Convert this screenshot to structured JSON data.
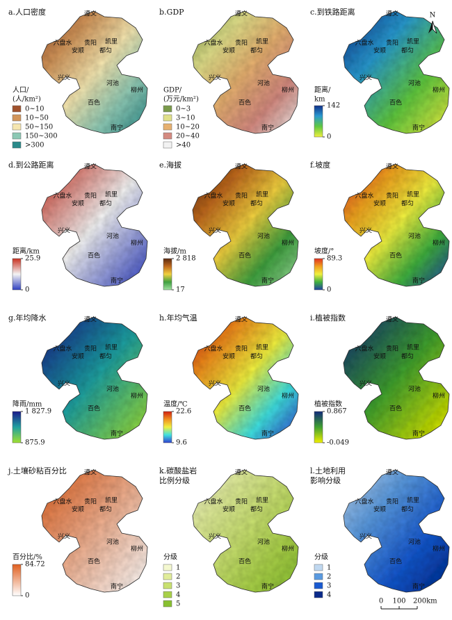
{
  "panels": [
    {
      "title": [
        "a.人口密度"
      ],
      "legend_title": [
        "人口/",
        "(人/km²)"
      ],
      "legend": {
        "kind": "classes",
        "labels": [
          "0~10",
          "10~50",
          "50~150",
          "150~300",
          ">300"
        ],
        "colors": [
          "#a0522d",
          "#d2955a",
          "#f5e6b0",
          "#8cc8b4",
          "#2a8a8a"
        ]
      }
    },
    {
      "title": [
        "b.GDP"
      ],
      "legend_title": [
        "GDP/",
        "(万元/km²)"
      ],
      "legend": {
        "kind": "classes",
        "labels": [
          "0~3",
          "3~10",
          "10~20",
          "20~40",
          ">40"
        ],
        "colors": [
          "#7a9a4a",
          "#e0e08a",
          "#e6b070",
          "#d48a80",
          "#f2f2f2"
        ]
      }
    },
    {
      "title": [
        "c.到铁路距离"
      ],
      "legend_title": [
        "距离/",
        "km"
      ],
      "legend": {
        "kind": "colorbar",
        "ticks": [
          0,
          142
        ],
        "colors": [
          "#10308a",
          "#2a9ad0",
          "#60c840",
          "#f0f040"
        ]
      }
    },
    {
      "title": [
        "d.到公路距离"
      ],
      "legend_title": [
        "距离/km"
      ],
      "legend": {
        "kind": "colorbar",
        "ticks": [
          0,
          25.9
        ],
        "colors": [
          "#c83020",
          "#f4f4f4",
          "#3040c0"
        ]
      }
    },
    {
      "title": [
        "e.海拔"
      ],
      "legend_title": [
        "海拔/m"
      ],
      "legend": {
        "kind": "colorbar",
        "ticks": [
          17,
          {
            "value": 2818,
            "label": "2 818"
          }
        ],
        "colors": [
          "#5a2a10",
          "#c06a20",
          "#f0d040",
          "#40a040",
          "#a0e0a0"
        ]
      }
    },
    {
      "title": [
        "f.坡度"
      ],
      "legend_title": [
        "坡度/°"
      ],
      "legend": {
        "kind": "colorbar",
        "ticks": [
          0,
          89.3
        ],
        "colors": [
          "#e03020",
          "#f0a020",
          "#f0f040",
          "#40b040",
          "#2040a0"
        ]
      }
    },
    {
      "title": [
        "g.年均降水"
      ],
      "legend_title": [
        "降雨/mm"
      ],
      "legend": {
        "kind": "colorbar",
        "ticks": [
          875.9,
          {
            "value": 1827.9,
            "label": "1 827.9"
          }
        ],
        "colors": [
          "#1a1a8a",
          "#20a0a0",
          "#a0e030"
        ]
      }
    },
    {
      "title": [
        "h.年均气温"
      ],
      "legend_title": [
        "温度/℃"
      ],
      "legend": {
        "kind": "colorbar",
        "ticks": [
          9.6,
          22.6
        ],
        "colors": [
          "#d02010",
          "#f09020",
          "#f0f040",
          "#40e0e0",
          "#3040d0"
        ]
      }
    },
    {
      "title": [
        "i.植被指数"
      ],
      "legend_title": [
        "植被指数"
      ],
      "legend": {
        "kind": "colorbar",
        "ticks": [
          -0.049,
          0.867
        ],
        "colors": [
          "#102a7a",
          "#40a030",
          "#f0f000"
        ]
      }
    },
    {
      "title": [
        "j.土壤砂粘百分比"
      ],
      "legend_title": [
        "百分比/%"
      ],
      "legend": {
        "kind": "colorbar",
        "ticks": [
          0,
          84.72
        ],
        "colors": [
          "#e06020",
          "#ffffff"
        ]
      }
    },
    {
      "title": [
        "k.碳酸盐岩",
        "比例分级"
      ],
      "legend_title": [
        "分级"
      ],
      "legend": {
        "kind": "classes",
        "labels": [
          "1",
          "2",
          "3",
          "4",
          "5"
        ],
        "colors": [
          "#f4f8d0",
          "#e0ec9a",
          "#c8e070",
          "#a8d048",
          "#88c030"
        ]
      }
    },
    {
      "title": [
        "l.土地利用",
        "影响分级"
      ],
      "legend_title": [
        "分级"
      ],
      "legend": {
        "kind": "classes",
        "labels": [
          "1",
          "2",
          "3",
          "4"
        ],
        "colors": [
          "#c0d8f0",
          "#5a9ae0",
          "#1a5ad0",
          "#0a2a8a"
        ]
      }
    }
  ],
  "cities": [
    "遵义",
    "六盘水",
    "贵阳",
    "凯里",
    "安顺",
    "都匀",
    "兴义",
    "河池",
    "柳州",
    "百色",
    "南宁"
  ],
  "north": "N",
  "scale_bar": [
    0,
    100,
    {
      "value": 200,
      "label": "200km"
    }
  ]
}
